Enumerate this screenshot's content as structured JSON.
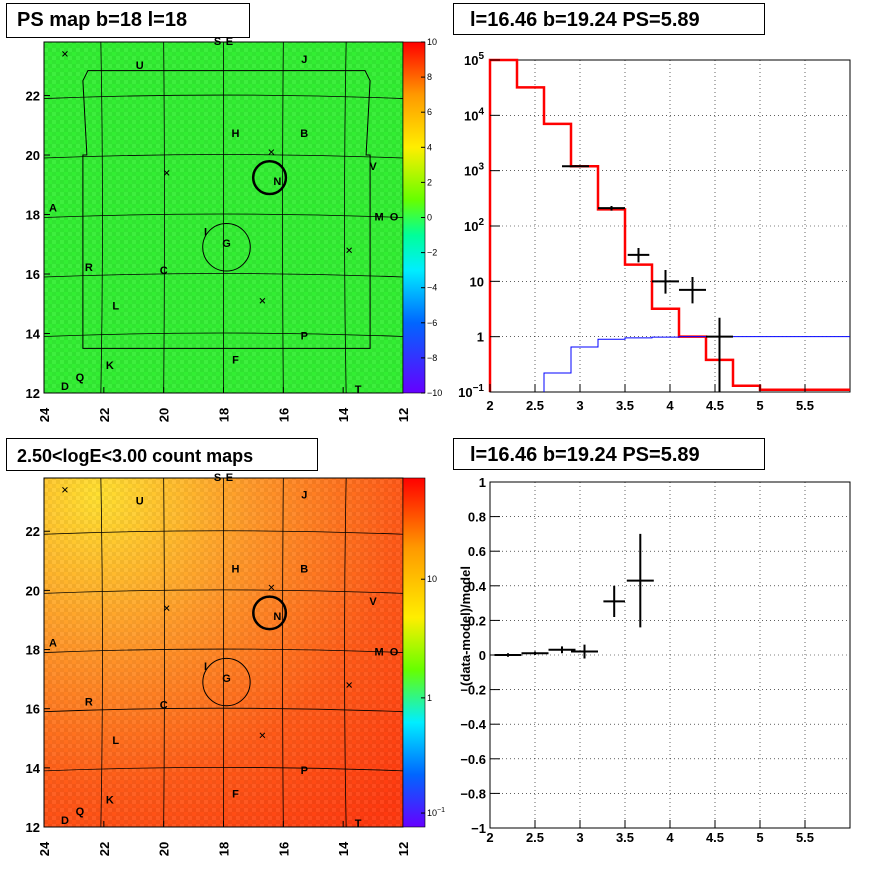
{
  "titles": {
    "tl": "PS map b=18 l=18",
    "tr": "l=16.46 b=19.24 PS=5.89",
    "bl": "2.50<logE<3.00 count maps",
    "br": "l=16.46 b=19.24 PS=5.89"
  },
  "colors": {
    "ps_bg": "#33ee33",
    "count_bg": "#ff6020",
    "model_red": "#ff0000",
    "model_blue": "#0000ff"
  },
  "chart_data": [
    {
      "type": "heatmap",
      "name": "ps_map",
      "xlim": [
        24,
        12
      ],
      "ylim": [
        12,
        23.8
      ],
      "xticks": [
        "24",
        "22",
        "20",
        "18",
        "16",
        "14",
        "12"
      ],
      "yticks": [
        "12",
        "14",
        "16",
        "18",
        "20",
        "22"
      ],
      "colorbar_ticks": [
        "10",
        "8",
        "6",
        "4",
        "2",
        "0",
        "−2",
        "−4",
        "−6",
        "−8",
        "−10"
      ],
      "grid": true,
      "sources": [
        {
          "label": "S",
          "l": 18.2,
          "b": 23.7
        },
        {
          "label": "E",
          "l": 17.8,
          "b": 23.7
        },
        {
          "label": "U",
          "l": 20.8,
          "b": 22.9
        },
        {
          "label": "J",
          "l": 15.3,
          "b": 23.1
        },
        {
          "label": "H",
          "l": 17.6,
          "b": 20.6
        },
        {
          "label": "B",
          "l": 15.3,
          "b": 20.6
        },
        {
          "label": "V",
          "l": 13.0,
          "b": 19.5
        },
        {
          "label": "N",
          "l": 16.2,
          "b": 19.0
        },
        {
          "label": "A",
          "l": 23.7,
          "b": 18.1
        },
        {
          "label": "M",
          "l": 12.8,
          "b": 17.8
        },
        {
          "label": "O",
          "l": 12.3,
          "b": 17.8
        },
        {
          "label": "I",
          "l": 18.6,
          "b": 17.3
        },
        {
          "label": "G",
          "l": 17.9,
          "b": 16.9
        },
        {
          "label": "R",
          "l": 22.5,
          "b": 16.1
        },
        {
          "label": "C",
          "l": 20.0,
          "b": 16.0
        },
        {
          "label": "L",
          "l": 21.6,
          "b": 14.8
        },
        {
          "label": "P",
          "l": 15.3,
          "b": 13.8
        },
        {
          "label": "F",
          "l": 17.6,
          "b": 13.0
        },
        {
          "label": "K",
          "l": 21.8,
          "b": 12.8
        },
        {
          "label": "Q",
          "l": 22.8,
          "b": 12.4
        },
        {
          "label": "D",
          "l": 23.3,
          "b": 12.1
        },
        {
          "label": "T",
          "l": 13.5,
          "b": 12.0
        }
      ],
      "circles": [
        {
          "l": 16.46,
          "b": 19.24,
          "r": 0.55,
          "w": 2.5
        },
        {
          "l": 17.9,
          "b": 16.9,
          "r": 0.8,
          "w": 1
        }
      ],
      "crosses": [
        {
          "l": 23.3,
          "b": 23.4
        },
        {
          "l": 16.4,
          "b": 20.1
        },
        {
          "l": 19.9,
          "b": 19.4
        },
        {
          "l": 13.8,
          "b": 16.8
        },
        {
          "l": 16.7,
          "b": 15.1
        }
      ]
    },
    {
      "type": "line",
      "name": "spectrum",
      "xlim": [
        2,
        6
      ],
      "ylim": [
        0.1,
        100000
      ],
      "yscale": "log",
      "grid": true,
      "xticks": [
        "2",
        "2.5",
        "3",
        "3.5",
        "4",
        "4.5",
        "5",
        "5.5"
      ],
      "yticks": [
        {
          "base": "10",
          "exp": "5"
        },
        {
          "base": "10",
          "exp": "4"
        },
        {
          "base": "10",
          "exp": "3"
        },
        {
          "base": "10",
          "exp": "2"
        },
        {
          "base": "10",
          "exp": ""
        },
        {
          "base": "1",
          "exp": ""
        },
        {
          "base": "10",
          "exp": "−1"
        }
      ],
      "series": [
        {
          "color": "#ff0000",
          "edges": [
            2.0,
            2.3,
            2.6,
            2.9,
            3.2,
            3.5,
            3.8,
            4.1,
            4.4,
            4.7,
            5.0,
            6.0
          ],
          "values": [
            100000,
            32000,
            7000,
            1200,
            200,
            20,
            3.2,
            1.0,
            0.38,
            0.13,
            0.11
          ]
        },
        {
          "color": "#0000ff",
          "edges": [
            2.6,
            2.9,
            3.2,
            3.5,
            3.8,
            4.1,
            4.4,
            4.7,
            5.0,
            6.0
          ],
          "values": [
            0.22,
            0.65,
            0.9,
            0.95,
            0.98,
            1.0,
            1.0,
            1.0,
            1.0
          ]
        }
      ],
      "points": [
        {
          "x": 2.95,
          "y": 1200,
          "xerr": 0.15,
          "ylo": 1150,
          "yhi": 1260
        },
        {
          "x": 3.35,
          "y": 210,
          "xerr": 0.15,
          "ylo": 190,
          "yhi": 230
        },
        {
          "x": 3.65,
          "y": 30,
          "xerr": 0.12,
          "ylo": 22,
          "yhi": 40
        },
        {
          "x": 3.95,
          "y": 10,
          "xerr": 0.15,
          "ylo": 6,
          "yhi": 16
        },
        {
          "x": 4.25,
          "y": 7,
          "xerr": 0.15,
          "ylo": 4,
          "yhi": 12
        },
        {
          "x": 4.55,
          "y": 1,
          "xerr": 0.15,
          "ylo": 0.1,
          "yhi": 2.2
        }
      ]
    },
    {
      "type": "heatmap",
      "name": "count_map",
      "energy_range": "2.50<logE<3.00",
      "xlim": [
        24,
        12
      ],
      "ylim": [
        12,
        23.8
      ],
      "xticks": [
        "24",
        "22",
        "20",
        "18",
        "16",
        "14",
        "12"
      ],
      "yticks": [
        "12",
        "14",
        "16",
        "18",
        "20",
        "22"
      ],
      "colorbar_ticks": [
        {
          "base": "10",
          "exp": "",
          "frac": 0.29
        },
        {
          "base": "1",
          "exp": "",
          "frac": 0.63
        },
        {
          "base": "10",
          "exp": "−1",
          "frac": 0.96
        }
      ],
      "grid": true
    },
    {
      "type": "scatter",
      "name": "residuals",
      "xlim": [
        2,
        6
      ],
      "ylim": [
        -1,
        1
      ],
      "grid": true,
      "ylabel": "(data-model)/model",
      "xticks": [
        "2",
        "2.5",
        "3",
        "3.5",
        "4",
        "4.5",
        "5",
        "5.5"
      ],
      "yticks": [
        "1",
        "0.8",
        "0.6",
        "0.4",
        "0.2",
        "0",
        "−0.2",
        "−0.4",
        "−0.6",
        "−0.8",
        "−1"
      ],
      "points": [
        {
          "x": 2.2,
          "y": 0.0,
          "xerr": 0.15,
          "yerr": 0.01
        },
        {
          "x": 2.5,
          "y": 0.01,
          "xerr": 0.15,
          "yerr": 0.01
        },
        {
          "x": 2.8,
          "y": 0.03,
          "xerr": 0.15,
          "yerr": 0.02
        },
        {
          "x": 3.05,
          "y": 0.02,
          "xerr": 0.15,
          "yerr": 0.04
        },
        {
          "x": 3.38,
          "y": 0.31,
          "xerr": 0.12,
          "yerr": 0.09
        },
        {
          "x": 3.67,
          "y": 0.43,
          "xerr": 0.15,
          "yerr": 0.27
        }
      ]
    }
  ]
}
